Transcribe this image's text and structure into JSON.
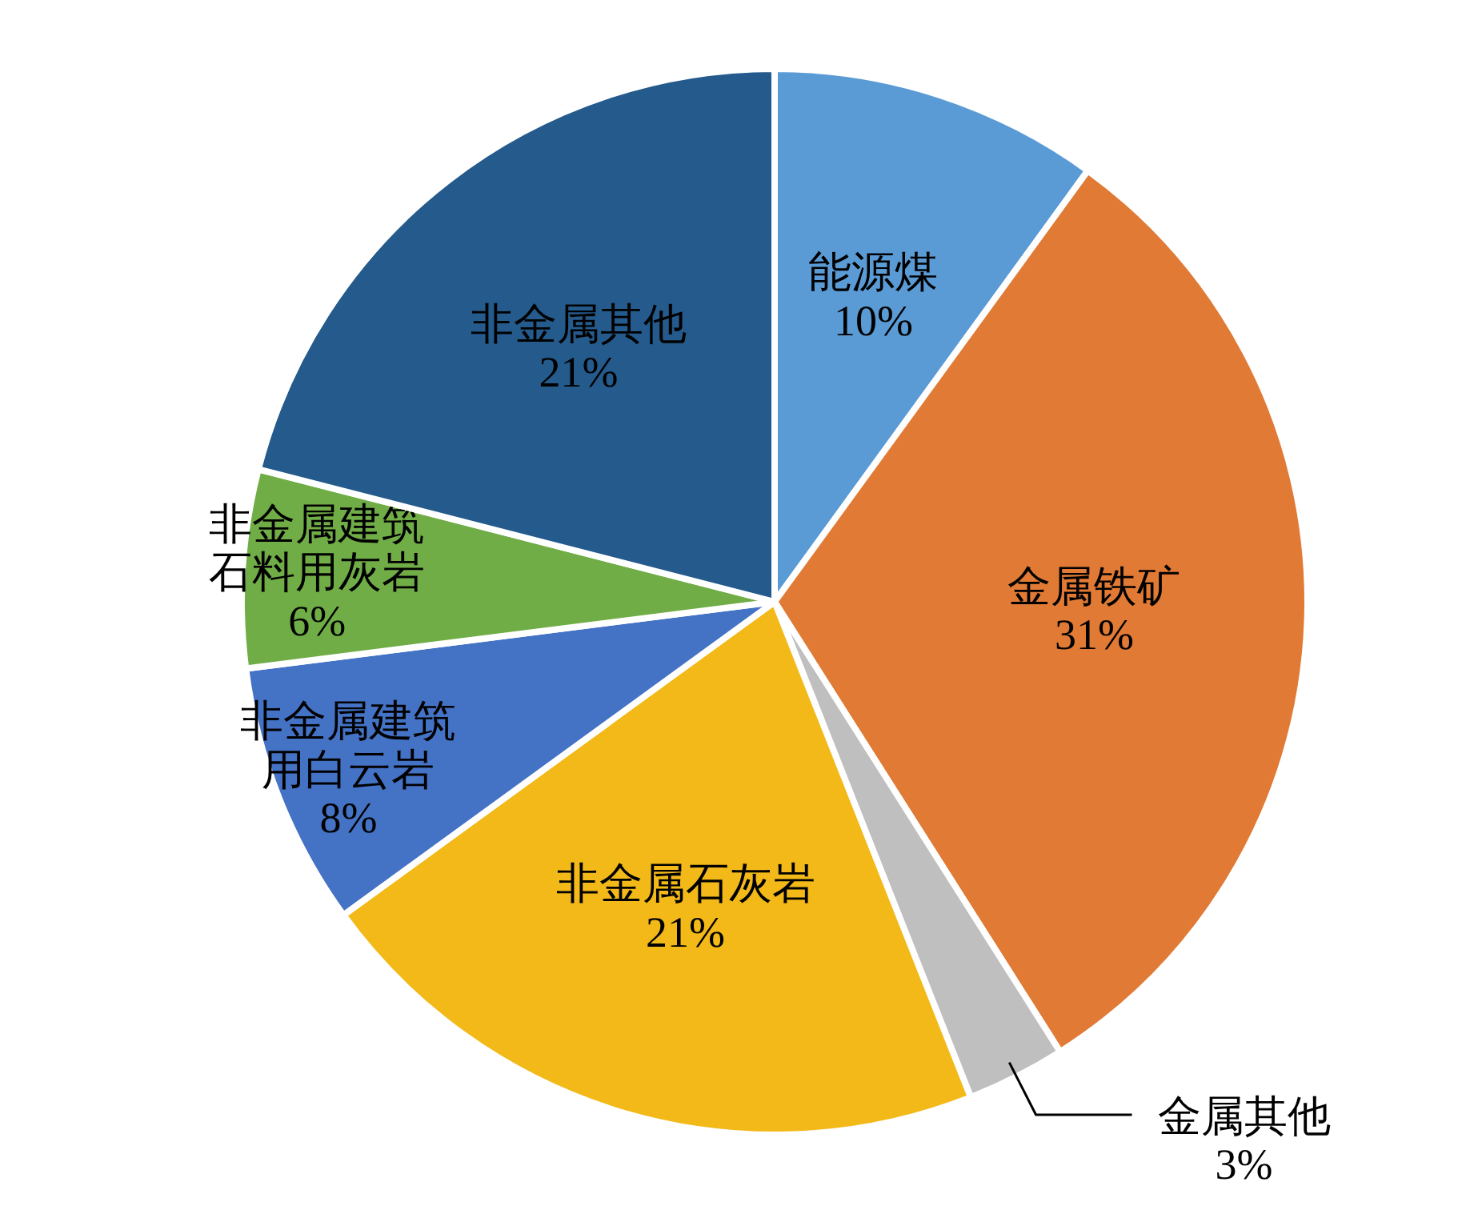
{
  "chart_data": {
    "type": "pie",
    "categories": [
      "能源煤",
      "金属铁矿",
      "金属其他",
      "非金属石灰岩",
      "非金属建筑用白云岩",
      "非金属建筑石料用灰岩",
      "非金属其他"
    ],
    "values": [
      10,
      31,
      3,
      21,
      8,
      6,
      21
    ],
    "value_labels": [
      "10%",
      "31%",
      "3%",
      "21%",
      "8%",
      "6%",
      "21%"
    ],
    "colors": [
      "#5b9bd5",
      "#e07a35",
      "#bfbfbf",
      "#f2b918",
      "#4472c4",
      "#70ad47",
      "#245a8c"
    ]
  }
}
